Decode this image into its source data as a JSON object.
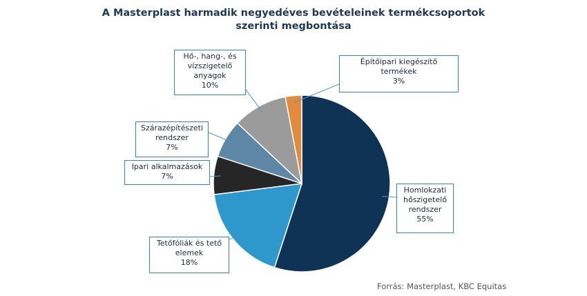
{
  "chart_data": {
    "type": "pie",
    "title_lines": [
      "A Masterplast harmadik negyedéves bevételeinek termékcsoportok",
      "szerinti megbontása"
    ],
    "slices": [
      {
        "label_lines": [
          "Homlokzati",
          "hőszigetelő",
          "rendszer"
        ],
        "value": 55,
        "value_label": "55%",
        "color": "#0e3354"
      },
      {
        "label_lines": [
          "Tetőfóliák és tető",
          "elemek"
        ],
        "value": 18,
        "value_label": "18%",
        "color": "#2e97cb"
      },
      {
        "label_lines": [
          "Ipari alkalmazások"
        ],
        "value": 7,
        "value_label": "7%",
        "color": "#262626"
      },
      {
        "label_lines": [
          "Szárazépítészeti",
          "rendszer"
        ],
        "value": 7,
        "value_label": "7%",
        "color": "#5e87a5"
      },
      {
        "label_lines": [
          "Hő-, hang-, és",
          "vízszigetelő",
          "anyagok"
        ],
        "value": 10,
        "value_label": "10%",
        "color": "#9b9b9b"
      },
      {
        "label_lines": [
          "Építőipari kiegészítő",
          "termékek"
        ],
        "value": 3,
        "value_label": "3%",
        "color": "#e28a3d"
      }
    ],
    "legend": "none"
  },
  "source_note": "Forrás: Masterplast, KBC Equitas"
}
